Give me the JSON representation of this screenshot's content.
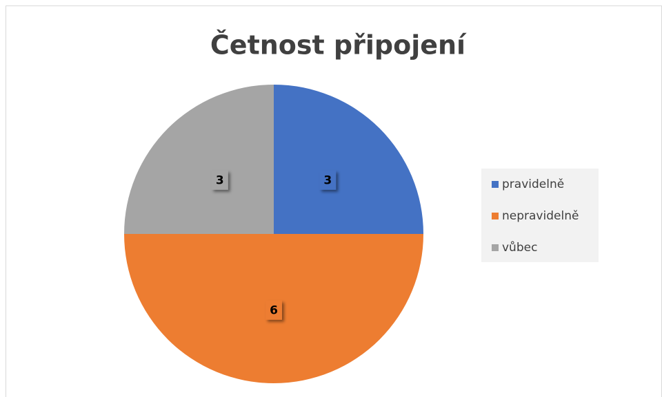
{
  "chart_data": {
    "type": "pie",
    "title": "Četnost připojení",
    "categories": [
      "pravidelně",
      "nepravidelně",
      "vůbec"
    ],
    "values": [
      3,
      6,
      3
    ],
    "colors": [
      "#4472c4",
      "#ed7d31",
      "#a5a5a5"
    ],
    "legend": "right"
  }
}
